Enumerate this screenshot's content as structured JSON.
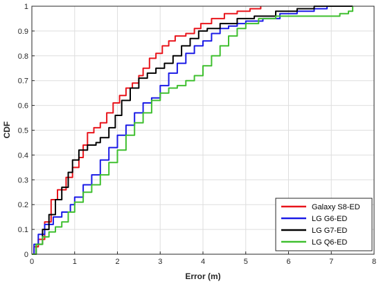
{
  "chart_data": {
    "type": "line",
    "title": "",
    "xlabel": "Error (m)",
    "ylabel": "CDF",
    "xlim": [
      0,
      8
    ],
    "ylim": [
      0,
      1
    ],
    "x_ticks": [
      "0",
      "1",
      "2",
      "3",
      "4",
      "5",
      "6",
      "7",
      "8"
    ],
    "y_ticks": [
      "0",
      "0.1",
      "0.2",
      "0.3",
      "0.4",
      "0.5",
      "0.6",
      "0.7",
      "0.8",
      "0.9",
      "1"
    ],
    "grid": true,
    "legend_position": "bottom-right",
    "series": [
      {
        "name": "Galaxy S8-ED",
        "color": "#e8141b",
        "points": [
          [
            0,
            0
          ],
          [
            0.05,
            0.03
          ],
          [
            0.15,
            0.06
          ],
          [
            0.3,
            0.13
          ],
          [
            0.45,
            0.22
          ],
          [
            0.6,
            0.26
          ],
          [
            0.8,
            0.31
          ],
          [
            0.95,
            0.35
          ],
          [
            1.1,
            0.39
          ],
          [
            1.2,
            0.44
          ],
          [
            1.3,
            0.49
          ],
          [
            1.45,
            0.51
          ],
          [
            1.6,
            0.53
          ],
          [
            1.75,
            0.57
          ],
          [
            1.9,
            0.61
          ],
          [
            2.05,
            0.64
          ],
          [
            2.2,
            0.67
          ],
          [
            2.35,
            0.69
          ],
          [
            2.5,
            0.72
          ],
          [
            2.6,
            0.75
          ],
          [
            2.75,
            0.79
          ],
          [
            2.9,
            0.81
          ],
          [
            3.05,
            0.84
          ],
          [
            3.2,
            0.86
          ],
          [
            3.35,
            0.88
          ],
          [
            3.6,
            0.89
          ],
          [
            3.8,
            0.91
          ],
          [
            3.95,
            0.93
          ],
          [
            4.2,
            0.95
          ],
          [
            4.5,
            0.97
          ],
          [
            4.8,
            0.98
          ],
          [
            5.1,
            0.99
          ],
          [
            5.35,
            1.0
          ]
        ]
      },
      {
        "name": "LG G6-ED",
        "color": "#1a1ae6",
        "points": [
          [
            0,
            0
          ],
          [
            0.05,
            0.04
          ],
          [
            0.15,
            0.08
          ],
          [
            0.3,
            0.12
          ],
          [
            0.5,
            0.15
          ],
          [
            0.7,
            0.17
          ],
          [
            0.9,
            0.2
          ],
          [
            1.0,
            0.23
          ],
          [
            1.2,
            0.28
          ],
          [
            1.4,
            0.32
          ],
          [
            1.6,
            0.38
          ],
          [
            1.8,
            0.43
          ],
          [
            2.0,
            0.48
          ],
          [
            2.2,
            0.52
          ],
          [
            2.4,
            0.57
          ],
          [
            2.6,
            0.61
          ],
          [
            2.8,
            0.63
          ],
          [
            3.0,
            0.68
          ],
          [
            3.2,
            0.73
          ],
          [
            3.4,
            0.77
          ],
          [
            3.6,
            0.81
          ],
          [
            3.8,
            0.84
          ],
          [
            4.0,
            0.86
          ],
          [
            4.2,
            0.89
          ],
          [
            4.4,
            0.91
          ],
          [
            4.6,
            0.92
          ],
          [
            4.8,
            0.93
          ],
          [
            5.0,
            0.94
          ],
          [
            5.4,
            0.95
          ],
          [
            5.8,
            0.97
          ],
          [
            6.2,
            0.98
          ],
          [
            6.6,
            0.99
          ],
          [
            6.9,
            1.0
          ],
          [
            7.5,
            1.0
          ]
        ]
      },
      {
        "name": "LG G7-ED",
        "color": "#000000",
        "points": [
          [
            0,
            0
          ],
          [
            0.1,
            0.04
          ],
          [
            0.25,
            0.1
          ],
          [
            0.4,
            0.16
          ],
          [
            0.55,
            0.22
          ],
          [
            0.7,
            0.27
          ],
          [
            0.85,
            0.33
          ],
          [
            0.95,
            0.38
          ],
          [
            1.1,
            0.42
          ],
          [
            1.3,
            0.44
          ],
          [
            1.5,
            0.45
          ],
          [
            1.6,
            0.47
          ],
          [
            1.8,
            0.51
          ],
          [
            1.95,
            0.56
          ],
          [
            2.1,
            0.62
          ],
          [
            2.3,
            0.67
          ],
          [
            2.5,
            0.71
          ],
          [
            2.7,
            0.73
          ],
          [
            2.9,
            0.75
          ],
          [
            3.1,
            0.77
          ],
          [
            3.3,
            0.8
          ],
          [
            3.5,
            0.84
          ],
          [
            3.7,
            0.87
          ],
          [
            3.9,
            0.9
          ],
          [
            4.1,
            0.91
          ],
          [
            4.4,
            0.93
          ],
          [
            4.8,
            0.95
          ],
          [
            5.2,
            0.96
          ],
          [
            5.7,
            0.98
          ],
          [
            6.2,
            0.99
          ],
          [
            6.6,
            1.0
          ],
          [
            7.5,
            1.0
          ]
        ]
      },
      {
        "name": "LG Q6-ED",
        "color": "#3fbf2f",
        "points": [
          [
            0,
            0
          ],
          [
            0.1,
            0.04
          ],
          [
            0.25,
            0.07
          ],
          [
            0.4,
            0.09
          ],
          [
            0.55,
            0.11
          ],
          [
            0.7,
            0.13
          ],
          [
            0.85,
            0.17
          ],
          [
            1.0,
            0.21
          ],
          [
            1.2,
            0.25
          ],
          [
            1.4,
            0.28
          ],
          [
            1.6,
            0.32
          ],
          [
            1.8,
            0.37
          ],
          [
            2.0,
            0.42
          ],
          [
            2.2,
            0.48
          ],
          [
            2.4,
            0.53
          ],
          [
            2.6,
            0.57
          ],
          [
            2.8,
            0.62
          ],
          [
            3.0,
            0.65
          ],
          [
            3.2,
            0.67
          ],
          [
            3.4,
            0.68
          ],
          [
            3.6,
            0.7
          ],
          [
            3.8,
            0.72
          ],
          [
            4.0,
            0.76
          ],
          [
            4.2,
            0.8
          ],
          [
            4.4,
            0.84
          ],
          [
            4.6,
            0.88
          ],
          [
            4.8,
            0.91
          ],
          [
            5.0,
            0.93
          ],
          [
            5.3,
            0.95
          ],
          [
            5.7,
            0.96
          ],
          [
            6.2,
            0.96
          ],
          [
            6.8,
            0.96
          ],
          [
            7.2,
            0.97
          ],
          [
            7.4,
            0.98
          ],
          [
            7.5,
            1.0
          ]
        ]
      }
    ]
  }
}
